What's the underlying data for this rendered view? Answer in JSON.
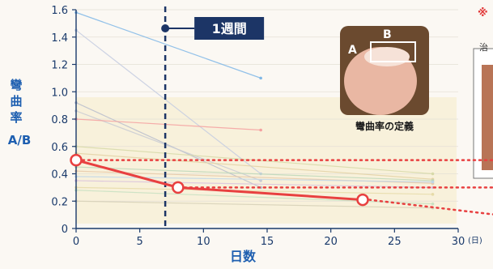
{
  "chart_data": {
    "type": "line",
    "ylabel_lines": [
      "彎",
      "曲",
      "率",
      "A/B"
    ],
    "xlabel": "日数",
    "x_unit": "(日)",
    "xlim": [
      0,
      30
    ],
    "ylim": [
      0,
      1.6
    ],
    "x_ticks": [
      0,
      5,
      10,
      15,
      20,
      25,
      30
    ],
    "y_ticks": [
      0,
      0.2,
      0.4,
      0.6,
      0.8,
      1.0,
      1.2,
      1.4,
      1.6
    ],
    "y_tick_labels": [
      "0",
      "0.2",
      "0.4",
      "0.6",
      "0.8",
      "1.0",
      "1.2",
      "1.4",
      "1.6"
    ],
    "series": [
      {
        "x": [
          0,
          8,
          22.5
        ],
        "y": [
          0.5,
          0.3,
          0.21
        ],
        "color": "#e84040"
      }
    ],
    "extensions": [
      {
        "y": 0.5
      },
      {
        "y": 0.3
      },
      {
        "y": 0.21
      }
    ],
    "background_lines": [
      {
        "x": [
          0,
          14.5
        ],
        "y": [
          1.58,
          1.1
        ],
        "color": "#7fb7e6"
      },
      {
        "x": [
          0,
          14.5
        ],
        "y": [
          1.45,
          0.4
        ],
        "color": "#c4cde0"
      },
      {
        "x": [
          0,
          14.5
        ],
        "y": [
          0.92,
          0.3
        ],
        "color": "#b8bdcc"
      },
      {
        "x": [
          0,
          14.5
        ],
        "y": [
          0.86,
          0.35
        ],
        "color": "#c9cbd4"
      },
      {
        "x": [
          0,
          14.5
        ],
        "y": [
          0.8,
          0.72
        ],
        "color": "#f4a0a0"
      },
      {
        "x": [
          0,
          28
        ],
        "y": [
          0.6,
          0.4
        ],
        "color": "#d7d9a8"
      },
      {
        "x": [
          0,
          28
        ],
        "y": [
          0.55,
          0.36
        ],
        "color": "#e3d1a3"
      },
      {
        "x": [
          0,
          28
        ],
        "y": [
          0.45,
          0.35
        ],
        "color": "#bcd7b8"
      },
      {
        "x": [
          0,
          28
        ],
        "y": [
          0.42,
          0.33
        ],
        "color": "#e7c9a8"
      },
      {
        "x": [
          0,
          28
        ],
        "y": [
          0.38,
          0.34
        ],
        "color": "#bfd6e8"
      },
      {
        "x": [
          0,
          28
        ],
        "y": [
          0.35,
          0.3
        ],
        "color": "#d9c2dc"
      },
      {
        "x": [
          0,
          28
        ],
        "y": [
          0.3,
          0.25
        ],
        "color": "#e6dba8"
      },
      {
        "x": [
          0,
          28
        ],
        "y": [
          0.28,
          0.18
        ],
        "color": "#c8e0c2"
      },
      {
        "x": [
          0,
          28
        ],
        "y": [
          0.2,
          0.15
        ],
        "color": "#d6d0b6"
      }
    ],
    "vline": {
      "x": 7,
      "label": "1週間"
    }
  },
  "photo": {
    "caption": "彎曲率の定義",
    "label_a": "A",
    "label_b": "B"
  },
  "edge": {
    "mark": "※",
    "text": "治"
  }
}
